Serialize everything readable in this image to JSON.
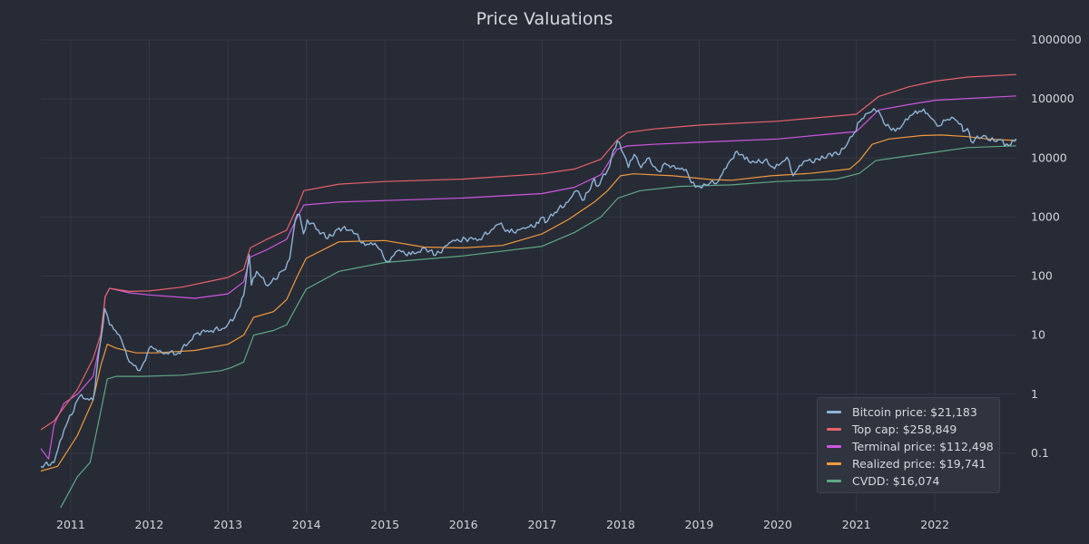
{
  "chart_data": {
    "type": "line",
    "title": "Price Valuations",
    "xlabel": "",
    "ylabel": "",
    "y_scale": "log",
    "ylim": [
      0.01,
      1000000
    ],
    "xlim": [
      "2010-08-15",
      "2023-01-15"
    ],
    "x_ticks": [
      "2011",
      "2012",
      "2013",
      "2014",
      "2015",
      "2016",
      "2017",
      "2018",
      "2019",
      "2020",
      "2021",
      "2022"
    ],
    "y_ticks": [
      "0.1",
      "1",
      "10",
      "100",
      "1000",
      "10000",
      "100000",
      "1000000"
    ],
    "grid": true,
    "legend_position": "bottom-right",
    "legend": [
      "Bitcoin price: $21,183",
      "Top cap: $258,849",
      "Terminal price: $112,498",
      "Realized price: $19,741",
      "CVDD: $16,074"
    ],
    "series": [
      {
        "name": "Bitcoin price",
        "color": "#8fb4d6",
        "x": [
          "2010-08-15",
          "2010-10-15",
          "2010-12-01",
          "2011-02-10",
          "2011-04-15",
          "2011-05-20",
          "2011-06-08",
          "2011-07-01",
          "2011-08-15",
          "2011-10-01",
          "2011-11-18",
          "2012-01-10",
          "2012-03-01",
          "2012-05-15",
          "2012-08-15",
          "2012-10-15",
          "2012-12-15",
          "2013-02-01",
          "2013-03-15",
          "2013-04-10",
          "2013-04-20",
          "2013-05-15",
          "2013-07-05",
          "2013-09-15",
          "2013-10-15",
          "2013-11-10",
          "2013-11-30",
          "2013-12-18",
          "2014-01-05",
          "2014-02-25",
          "2014-04-10",
          "2014-06-01",
          "2014-08-01",
          "2014-10-01",
          "2014-11-15",
          "2015-01-14",
          "2015-03-01",
          "2015-05-01",
          "2015-07-10",
          "2015-08-25",
          "2015-11-05",
          "2016-01-10",
          "2016-03-15",
          "2016-06-16",
          "2016-08-02",
          "2016-10-15",
          "2016-12-15",
          "2017-01-04",
          "2017-01-15",
          "2017-03-01",
          "2017-05-01",
          "2017-06-10",
          "2017-07-15",
          "2017-09-01",
          "2017-09-15",
          "2017-11-01",
          "2017-12-17",
          "2018-01-15",
          "2018-02-06",
          "2018-03-05",
          "2018-04-06",
          "2018-05-05",
          "2018-06-28",
          "2018-07-25",
          "2018-09-15",
          "2018-11-01",
          "2018-11-25",
          "2018-12-15",
          "2019-02-01",
          "2019-04-01",
          "2019-05-15",
          "2019-06-26",
          "2019-08-01",
          "2019-09-25",
          "2019-11-01",
          "2019-12-18",
          "2020-02-13",
          "2020-03-13",
          "2020-05-01",
          "2020-07-15",
          "2020-09-01",
          "2020-10-15",
          "2020-11-25",
          "2020-12-31",
          "2021-01-08",
          "2021-02-21",
          "2021-03-13",
          "2021-04-14",
          "2021-05-19",
          "2021-06-22",
          "2021-07-20",
          "2021-09-07",
          "2021-10-20",
          "2021-11-10",
          "2021-12-15",
          "2022-01-22",
          "2022-02-10",
          "2022-03-29",
          "2022-05-01",
          "2022-05-12",
          "2022-06-01",
          "2022-06-18",
          "2022-08-15",
          "2022-09-15",
          "2022-11-01",
          "2022-11-21",
          "2022-12-20",
          "2023-01-14"
        ],
        "y": [
          0.06,
          0.07,
          0.25,
          0.9,
          0.8,
          8,
          28,
          15,
          10,
          3.5,
          2.5,
          6.5,
          5,
          5,
          11,
          12,
          13,
          20,
          47,
          230,
          70,
          120,
          68,
          125,
          195,
          900,
          1100,
          520,
          900,
          600,
          430,
          650,
          600,
          330,
          360,
          175,
          270,
          230,
          290,
          225,
          380,
          430,
          420,
          760,
          550,
          640,
          780,
          1000,
          800,
          1200,
          1800,
          2800,
          1950,
          4500,
          3300,
          6200,
          19500,
          11500,
          6900,
          11500,
          6800,
          9800,
          5900,
          8200,
          6500,
          6400,
          3800,
          3200,
          3500,
          4100,
          8000,
          13000,
          9500,
          8300,
          9200,
          6600,
          10300,
          5000,
          8800,
          9200,
          12000,
          11500,
          19000,
          29000,
          40000,
          57000,
          61000,
          63500,
          35000,
          32000,
          31000,
          52000,
          62000,
          67500,
          47000,
          35000,
          44000,
          47500,
          38000,
          28000,
          31500,
          19000,
          24000,
          19500,
          20500,
          16000,
          16800,
          21183
        ]
      },
      {
        "name": "Top cap",
        "color": "#e8636b",
        "x": [
          "2010-08-15",
          "2010-10-15",
          "2010-12-01",
          "2011-02-01",
          "2011-04-15",
          "2011-05-20",
          "2011-06-10",
          "2011-07-01",
          "2011-10-01",
          "2012-01-01",
          "2012-06-01",
          "2013-01-01",
          "2013-03-15",
          "2013-04-15",
          "2013-07-01",
          "2013-10-01",
          "2013-11-20",
          "2013-12-20",
          "2014-06-01",
          "2015-01-01",
          "2016-01-01",
          "2017-01-01",
          "2017-06-01",
          "2017-10-01",
          "2017-12-15",
          "2018-02-01",
          "2018-06-01",
          "2019-01-01",
          "2020-01-01",
          "2021-01-01",
          "2021-04-15",
          "2021-09-01",
          "2022-01-01",
          "2022-06-01",
          "2023-01-14"
        ],
        "y": [
          0.25,
          0.35,
          0.6,
          1.2,
          4,
          10,
          45,
          62,
          55,
          56,
          65,
          95,
          130,
          300,
          420,
          600,
          1500,
          2800,
          3600,
          4000,
          4400,
          5400,
          6500,
          9500,
          20000,
          27000,
          31000,
          36000,
          42000,
          55000,
          110000,
          160000,
          200000,
          235000,
          258849
        ]
      },
      {
        "name": "Terminal price",
        "color": "#cf57e0",
        "x": [
          "2010-08-15",
          "2010-09-20",
          "2010-10-15",
          "2010-12-01",
          "2011-02-01",
          "2011-04-15",
          "2011-05-20",
          "2011-06-10",
          "2011-07-01",
          "2011-10-01",
          "2012-01-01",
          "2012-08-01",
          "2013-01-01",
          "2013-03-15",
          "2013-04-15",
          "2013-07-01",
          "2013-10-01",
          "2013-11-20",
          "2013-12-20",
          "2014-06-01",
          "2015-01-01",
          "2016-01-01",
          "2017-01-01",
          "2017-06-01",
          "2017-10-01",
          "2017-12-15",
          "2018-02-01",
          "2018-06-01",
          "2019-01-01",
          "2020-01-01",
          "2021-01-01",
          "2021-04-15",
          "2021-09-01",
          "2022-01-01",
          "2023-01-14"
        ],
        "y": [
          0.12,
          0.08,
          0.3,
          0.7,
          1,
          2,
          8,
          45,
          62,
          52,
          48,
          42,
          50,
          80,
          210,
          280,
          420,
          1000,
          1600,
          1800,
          1900,
          2100,
          2500,
          3200,
          5200,
          14000,
          16000,
          17000,
          18500,
          21000,
          28000,
          65000,
          80000,
          95000,
          112498
        ]
      },
      {
        "name": "Realized price",
        "color": "#f09a3e",
        "x": [
          "2010-08-15",
          "2010-11-01",
          "2011-02-01",
          "2011-04-15",
          "2011-05-20",
          "2011-06-20",
          "2011-08-01",
          "2011-11-01",
          "2012-02-01",
          "2012-08-01",
          "2013-01-01",
          "2013-03-15",
          "2013-05-01",
          "2013-08-01",
          "2013-10-01",
          "2013-11-20",
          "2013-12-31",
          "2014-06-01",
          "2015-01-01",
          "2015-07-01",
          "2016-01-01",
          "2016-07-01",
          "2017-01-01",
          "2017-05-01",
          "2017-09-01",
          "2017-11-01",
          "2017-12-31",
          "2018-03-01",
          "2018-09-01",
          "2019-03-01",
          "2019-06-01",
          "2019-12-01",
          "2020-06-01",
          "2020-12-01",
          "2021-01-15",
          "2021-03-15",
          "2021-06-01",
          "2021-11-01",
          "2022-02-01",
          "2022-06-01",
          "2022-09-01",
          "2023-01-14"
        ],
        "y": [
          0.05,
          0.06,
          0.2,
          0.8,
          3,
          7,
          6,
          5,
          5,
          5.5,
          7,
          10,
          20,
          25,
          40,
          100,
          200,
          380,
          400,
          310,
          300,
          330,
          520,
          900,
          1800,
          2800,
          5000,
          5400,
          5000,
          4300,
          4200,
          5000,
          5500,
          6500,
          9000,
          17000,
          21000,
          24000,
          24500,
          23000,
          21000,
          19741
        ]
      },
      {
        "name": "CVDD",
        "color": "#5fa883",
        "x": [
          "2010-11-15",
          "2011-02-01",
          "2011-04-01",
          "2011-05-20",
          "2011-06-20",
          "2011-08-01",
          "2011-12-01",
          "2012-06-01",
          "2012-12-01",
          "2013-01-15",
          "2013-03-15",
          "2013-05-01",
          "2013-08-01",
          "2013-10-01",
          "2013-11-25",
          "2013-12-31",
          "2014-06-01",
          "2015-01-01",
          "2016-01-01",
          "2017-01-01",
          "2017-06-01",
          "2017-10-01",
          "2017-12-20",
          "2018-04-01",
          "2018-10-01",
          "2019-06-01",
          "2020-01-01",
          "2020-10-01",
          "2021-01-15",
          "2021-04-01",
          "2021-08-01",
          "2022-01-01",
          "2022-06-01",
          "2023-01-14"
        ],
        "y": [
          0.012,
          0.04,
          0.07,
          0.5,
          1.8,
          2,
          2,
          2.1,
          2.5,
          2.8,
          3.5,
          10,
          12,
          15,
          35,
          60,
          120,
          170,
          220,
          320,
          550,
          1000,
          2100,
          2800,
          3300,
          3500,
          4000,
          4400,
          5500,
          9000,
          10500,
          12500,
          15000,
          16074
        ]
      }
    ]
  }
}
